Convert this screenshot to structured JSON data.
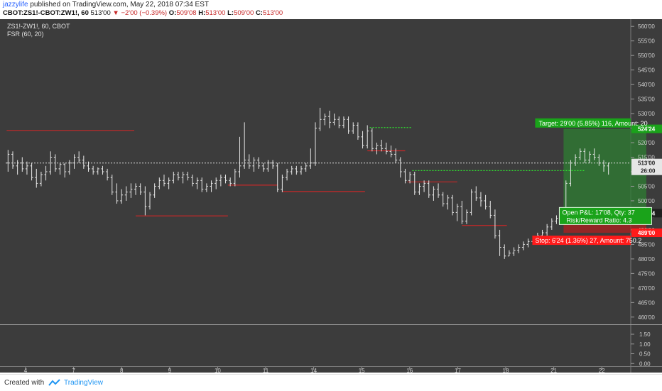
{
  "header": {
    "user": "jazzylife",
    "published": "published on TradingView.com, May 22, 2018 07:34 EST",
    "symbol": "CBOT:ZS1!-CBOT:ZW1!, 60",
    "last": "513'00",
    "change": "−2'00 (−0.39%)",
    "o_label": "O:",
    "o": "509'08",
    "h_label": "H:",
    "h": "513'00",
    "l_label": "L:",
    "l": "509'00",
    "c_label": "C:",
    "c": "513'00"
  },
  "pane": {
    "symbol_line": "ZS1!-ZW1!, 60, CBOT",
    "indicator": "FSR (60, 20)"
  },
  "colors": {
    "background": "#3c3c3c",
    "bars": "#e8e8e8",
    "support_resistance": "#c62828",
    "target_zone": "#2e7d32",
    "stop_zone": "#b71c1c",
    "green_label": "#1aa31a",
    "red_label": "#ff1a1a"
  },
  "chart_data": {
    "type": "ohlc",
    "x_ticks": [
      "4",
      "7",
      "8",
      "9",
      "10",
      "11",
      "14",
      "15",
      "16",
      "17",
      "18",
      "21",
      "22"
    ],
    "y_ticks": [
      "560'00",
      "555'00",
      "550'00",
      "545'00",
      "540'00",
      "535'00",
      "530'00",
      "525'00",
      "520'00",
      "515'00",
      "510'00",
      "505'00",
      "500'00",
      "495'00",
      "490'00",
      "485'00",
      "480'00",
      "475'00",
      "470'00",
      "465'00",
      "460'00"
    ],
    "ylim": [
      458,
      562
    ],
    "lower_ticks": [
      "1.50",
      "1.00",
      "0.50",
      "0.00"
    ],
    "lower_ylim": [
      -0.1,
      1.9
    ],
    "price_labels": {
      "target": "524'24",
      "last": "513'00",
      "countdown": "26:00",
      "entry": "495'24",
      "stop": "489'00"
    },
    "last_price": 513,
    "entry_price": 495.75,
    "target_price": 524.75,
    "stop_price": 489,
    "annotations": {
      "target": "Target: 29'00 (5.85%) 116, Amount: 20",
      "entry_line1": "Open P&L: 17'08, Qty: 37",
      "entry_line2": "Risk/Reward Ratio: 4.3",
      "stop": "Stop: 6'24 (1.36%) 27, Amount: 750.2"
    },
    "levels": [
      {
        "style": "solid",
        "color": "red",
        "x0": 0.2,
        "x1": 27.2,
        "price": 524.2
      },
      {
        "style": "solid",
        "color": "red",
        "x0": 27.5,
        "x1": 47,
        "price": 494.8
      },
      {
        "style": "solid",
        "color": "red",
        "x0": 47,
        "x1": 57.5,
        "price": 505.4
      },
      {
        "style": "solid",
        "color": "red",
        "x0": 58.5,
        "x1": 76,
        "price": 503.2
      },
      {
        "style": "solid",
        "color": "red",
        "x0": 76.5,
        "x1": 84.5,
        "price": 517.2
      },
      {
        "style": "solid",
        "color": "red",
        "x0": 85,
        "x1": 95.5,
        "price": 506.5
      },
      {
        "style": "solid",
        "color": "red",
        "x0": 96.5,
        "x1": 106,
        "price": 491.5
      },
      {
        "style": "dotted",
        "color": "green",
        "x0": 77,
        "x1": 86,
        "price": 525.2
      },
      {
        "style": "dotted",
        "color": "green",
        "x0": 86,
        "x1": 122.5,
        "price": 510.4
      }
    ],
    "bars": [
      [
        513,
        517.5,
        510,
        516
      ],
      [
        516,
        517,
        511,
        512
      ],
      [
        512,
        514,
        509,
        513
      ],
      [
        513,
        515,
        510,
        511
      ],
      [
        511,
        513.5,
        509,
        512
      ],
      [
        512,
        513,
        507,
        508
      ],
      [
        508,
        511,
        504.5,
        506
      ],
      [
        506,
        510,
        505,
        509
      ],
      [
        509,
        512,
        507,
        510
      ],
      [
        510,
        517,
        509,
        515
      ],
      [
        515,
        516,
        510,
        511
      ],
      [
        511,
        513,
        509,
        512.5
      ],
      [
        512.5,
        513,
        508,
        510
      ],
      [
        510,
        514,
        509,
        513
      ],
      [
        513,
        516,
        511,
        515
      ],
      [
        515,
        517,
        513,
        514
      ],
      [
        514,
        515.5,
        511,
        512
      ],
      [
        512,
        513.5,
        510,
        511
      ],
      [
        511,
        512,
        509,
        510
      ],
      [
        510,
        511.5,
        509,
        511
      ],
      [
        511,
        512,
        509,
        510
      ],
      [
        510,
        511,
        507,
        508
      ],
      [
        508,
        509,
        502,
        503
      ],
      [
        503,
        506,
        499,
        500
      ],
      [
        500,
        504,
        499,
        502
      ],
      [
        502,
        505,
        500,
        503
      ],
      [
        503,
        506,
        501,
        504
      ],
      [
        504,
        506,
        502,
        505
      ],
      [
        505,
        506,
        502,
        503
      ],
      [
        503,
        505,
        495,
        498
      ],
      [
        498,
        503,
        497,
        502
      ],
      [
        502,
        506,
        501,
        505
      ],
      [
        505,
        508,
        504,
        507
      ],
      [
        507,
        509,
        505,
        506
      ],
      [
        506,
        508,
        504,
        507
      ],
      [
        507,
        510,
        506,
        509
      ],
      [
        509,
        510,
        507,
        508
      ],
      [
        508,
        510,
        506,
        509
      ],
      [
        509,
        510,
        507,
        508
      ],
      [
        508,
        509,
        505,
        506
      ],
      [
        506,
        508,
        504,
        507
      ],
      [
        507,
        508,
        503,
        504
      ],
      [
        504,
        506,
        503,
        505
      ],
      [
        505,
        507,
        503,
        506
      ],
      [
        506,
        508,
        504,
        507
      ],
      [
        507,
        509,
        505,
        508
      ],
      [
        508,
        509,
        506,
        507
      ],
      [
        507,
        508,
        505,
        506
      ],
      [
        506,
        511,
        505,
        510
      ],
      [
        510,
        522,
        508,
        512
      ],
      [
        512,
        527,
        511,
        514
      ],
      [
        514,
        516,
        511,
        512
      ],
      [
        512,
        515,
        510,
        514
      ],
      [
        514,
        515,
        511,
        512
      ],
      [
        512,
        513,
        510,
        511
      ],
      [
        511,
        514,
        510,
        513
      ],
      [
        513,
        514,
        511,
        512
      ],
      [
        512,
        513,
        503,
        504
      ],
      [
        504,
        509,
        503,
        508
      ],
      [
        508,
        511,
        507,
        510
      ],
      [
        510,
        512,
        509,
        511
      ],
      [
        511,
        512,
        509,
        510
      ],
      [
        510,
        512,
        509,
        511
      ],
      [
        511,
        513,
        510,
        512
      ],
      [
        512,
        518,
        511,
        513
      ],
      [
        513,
        527,
        512,
        525
      ],
      [
        525,
        532,
        524,
        528
      ],
      [
        528,
        530,
        526,
        529
      ],
      [
        529,
        531,
        525,
        527
      ],
      [
        527,
        530,
        526,
        528
      ],
      [
        528,
        529,
        525,
        526
      ],
      [
        526,
        529,
        525,
        528
      ],
      [
        528,
        529,
        523,
        524
      ],
      [
        524,
        527,
        523,
        526
      ],
      [
        526,
        527,
        521,
        522
      ],
      [
        522,
        524,
        518,
        519
      ],
      [
        519,
        526,
        518,
        524
      ],
      [
        524,
        525,
        517,
        518
      ],
      [
        518,
        520,
        516,
        519
      ],
      [
        519,
        521,
        517,
        518
      ],
      [
        518,
        520,
        516,
        517
      ],
      [
        517,
        519,
        515,
        516
      ],
      [
        516,
        518,
        513,
        514
      ],
      [
        514,
        515,
        508,
        510
      ],
      [
        510,
        511,
        506,
        507
      ],
      [
        507,
        510,
        506,
        509
      ],
      [
        509,
        510,
        502,
        503
      ],
      [
        503,
        506,
        502,
        505
      ],
      [
        505,
        507,
        503,
        506
      ],
      [
        506,
        507,
        501,
        502
      ],
      [
        502,
        505,
        500,
        504
      ],
      [
        504,
        506,
        501,
        502
      ],
      [
        502,
        503,
        498,
        499
      ],
      [
        499,
        502,
        497,
        501
      ],
      [
        501,
        502,
        495,
        496
      ],
      [
        496,
        499,
        493,
        498
      ],
      [
        498,
        500,
        492,
        493
      ],
      [
        493,
        497,
        492,
        496
      ],
      [
        496,
        504,
        495,
        503
      ],
      [
        503,
        505,
        500,
        501
      ],
      [
        501,
        503,
        498,
        500
      ],
      [
        500,
        502,
        497,
        498
      ],
      [
        498,
        500,
        494,
        495
      ],
      [
        495,
        497,
        487,
        488
      ],
      [
        488,
        490,
        481,
        484
      ],
      [
        484,
        485,
        480,
        481
      ],
      [
        481,
        483,
        481,
        482
      ],
      [
        482,
        484,
        481,
        483
      ],
      [
        483,
        485,
        482,
        484
      ],
      [
        484,
        486,
        483,
        485
      ],
      [
        485,
        487,
        484,
        486
      ],
      [
        486,
        488,
        485,
        487
      ],
      [
        487,
        489,
        486,
        488
      ],
      [
        488,
        490,
        487,
        489
      ],
      [
        489,
        492,
        488,
        491
      ],
      [
        491,
        494,
        490,
        493
      ],
      [
        493,
        495,
        492,
        494
      ],
      [
        494,
        496,
        493,
        495
      ],
      [
        495,
        507,
        494,
        506
      ],
      [
        506,
        514,
        505,
        513
      ],
      [
        513,
        516,
        512,
        515
      ],
      [
        515,
        518,
        514,
        517
      ],
      [
        517,
        518,
        513,
        514
      ],
      [
        514,
        517,
        513,
        516
      ],
      [
        516,
        518,
        514,
        515
      ],
      [
        515,
        516,
        512,
        513
      ],
      [
        513,
        514,
        510,
        512
      ],
      [
        512,
        513,
        509,
        513
      ]
    ],
    "target_zone": {
      "x0": 118,
      "x1": 135.5,
      "top": 524.75,
      "bottom": 495.75
    },
    "stop_zone": {
      "x0": 118,
      "x1": 135.5,
      "top": 495.75,
      "bottom": 489
    }
  }
}
